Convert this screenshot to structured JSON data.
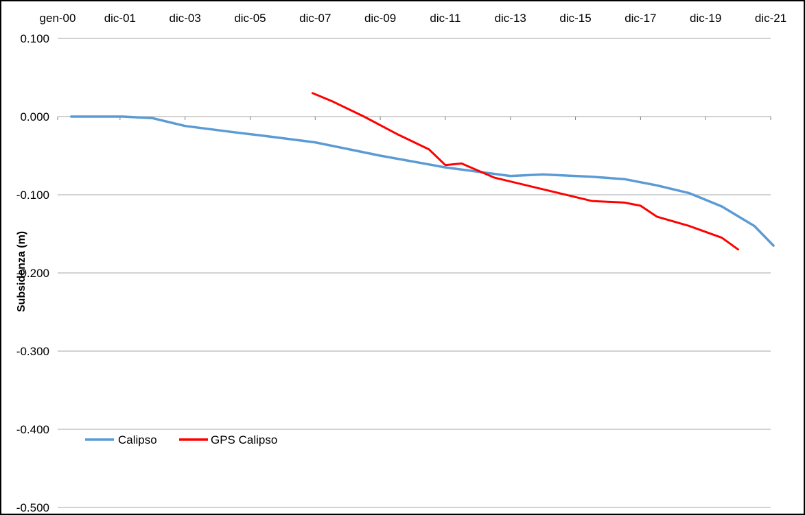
{
  "chart_data": {
    "type": "line",
    "title": "",
    "xlabel": "",
    "ylabel": "Subsidenza (m)",
    "x_tick_labels": [
      "gen-00",
      "dic-01",
      "dic-03",
      "dic-05",
      "dic-07",
      "dic-09",
      "dic-11",
      "dic-13",
      "dic-15",
      "dic-17",
      "dic-19",
      "dic-21"
    ],
    "x_ticks": [
      "2000-01",
      "2001-12",
      "2003-12",
      "2005-12",
      "2007-12",
      "2009-12",
      "2011-12",
      "2013-12",
      "2015-12",
      "2017-12",
      "2019-12",
      "2021-12"
    ],
    "xlim": [
      "2000-01",
      "2021-12"
    ],
    "ylim": [
      -0.5,
      0.1
    ],
    "y_tick_labels": [
      "0.100",
      "0.000",
      "-0.100",
      "-0.200",
      "-0.300",
      "-0.400",
      "-0.500"
    ],
    "y_ticks": [
      0.1,
      0.0,
      -0.1,
      -0.2,
      -0.3,
      -0.4,
      -0.5
    ],
    "grid": "horizontal",
    "legend_position": "bottom-left",
    "series": [
      {
        "name": "Calipso",
        "color": "#5b9bd5",
        "points": [
          [
            "2000-06",
            0.0
          ],
          [
            "2002-01",
            0.0
          ],
          [
            "2002-12",
            -0.002
          ],
          [
            "2003-12",
            -0.012
          ],
          [
            "2005-06",
            -0.02
          ],
          [
            "2006-06",
            -0.025
          ],
          [
            "2007-12",
            -0.033
          ],
          [
            "2009-12",
            -0.05
          ],
          [
            "2011-12",
            -0.065
          ],
          [
            "2013-12",
            -0.076
          ],
          [
            "2014-12",
            -0.074
          ],
          [
            "2016-06",
            -0.077
          ],
          [
            "2017-06",
            -0.08
          ],
          [
            "2018-06",
            -0.088
          ],
          [
            "2019-06",
            -0.098
          ],
          [
            "2020-06",
            -0.115
          ],
          [
            "2021-06",
            -0.14
          ],
          [
            "2022-01",
            -0.165
          ]
        ]
      },
      {
        "name": "GPS Calipso",
        "color": "#ff0000",
        "points": [
          [
            "2007-11",
            0.03
          ],
          [
            "2008-06",
            0.02
          ],
          [
            "2009-06",
            0.0
          ],
          [
            "2010-06",
            -0.022
          ],
          [
            "2011-06",
            -0.042
          ],
          [
            "2011-12",
            -0.062
          ],
          [
            "2012-06",
            -0.06
          ],
          [
            "2013-06",
            -0.078
          ],
          [
            "2014-06",
            -0.088
          ],
          [
            "2015-06",
            -0.098
          ],
          [
            "2016-06",
            -0.108
          ],
          [
            "2017-06",
            -0.11
          ],
          [
            "2017-12",
            -0.114
          ],
          [
            "2018-06",
            -0.128
          ],
          [
            "2019-06",
            -0.14
          ],
          [
            "2020-06",
            -0.155
          ],
          [
            "2020-12",
            -0.17
          ]
        ]
      }
    ]
  }
}
